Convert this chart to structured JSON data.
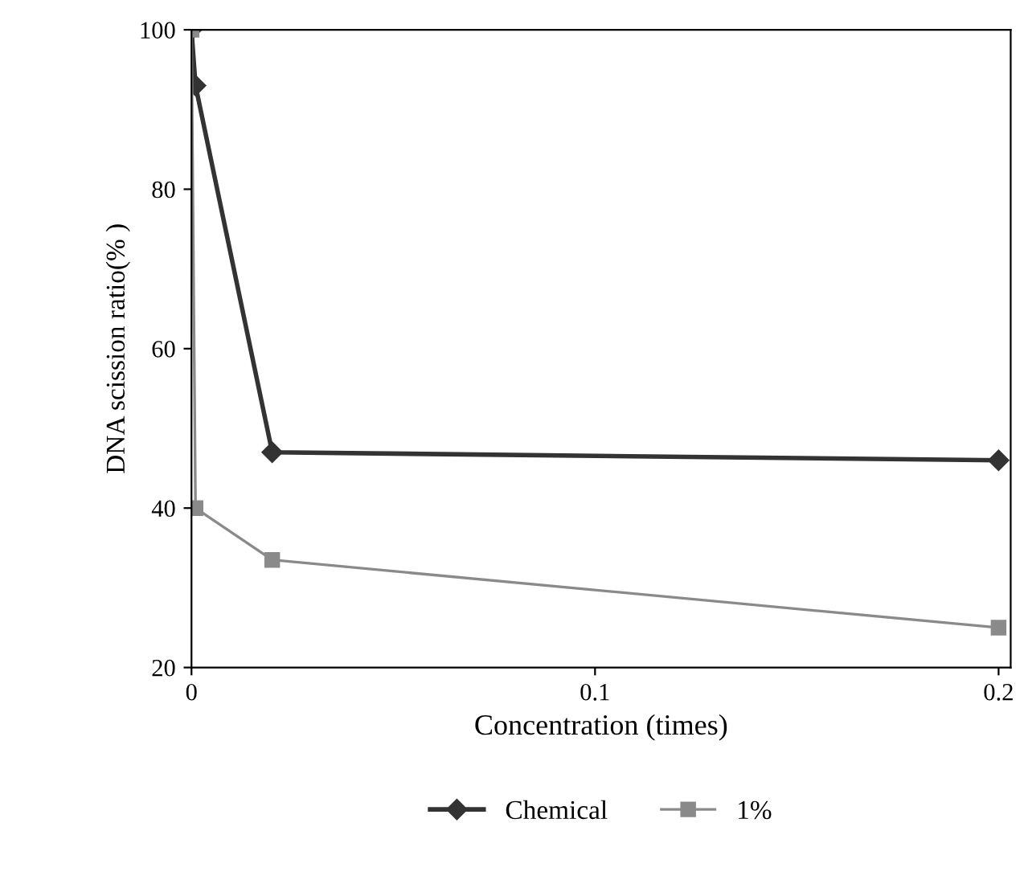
{
  "chart_data": {
    "type": "line",
    "xlabel": "Concentration (times)",
    "ylabel": "DNA scission ratio(% )",
    "xlim": [
      0,
      0.203
    ],
    "xticks": [
      0,
      0.1,
      0.2
    ],
    "ylim": [
      20,
      100
    ],
    "yticks": [
      20,
      40,
      60,
      80,
      100
    ],
    "grid": false,
    "legend": "bottom",
    "series": [
      {
        "name": "Chemical",
        "color": "#333333",
        "marker": "diamond",
        "x": [
          0,
          0.001,
          0.02,
          0.2
        ],
        "values": [
          100,
          93,
          47,
          46
        ]
      },
      {
        "name": "1%",
        "color": "#8a8a8a",
        "marker": "square",
        "x": [
          0,
          0.001,
          0.02,
          0.2
        ],
        "values": [
          100,
          40,
          33.5,
          25
        ]
      }
    ]
  }
}
